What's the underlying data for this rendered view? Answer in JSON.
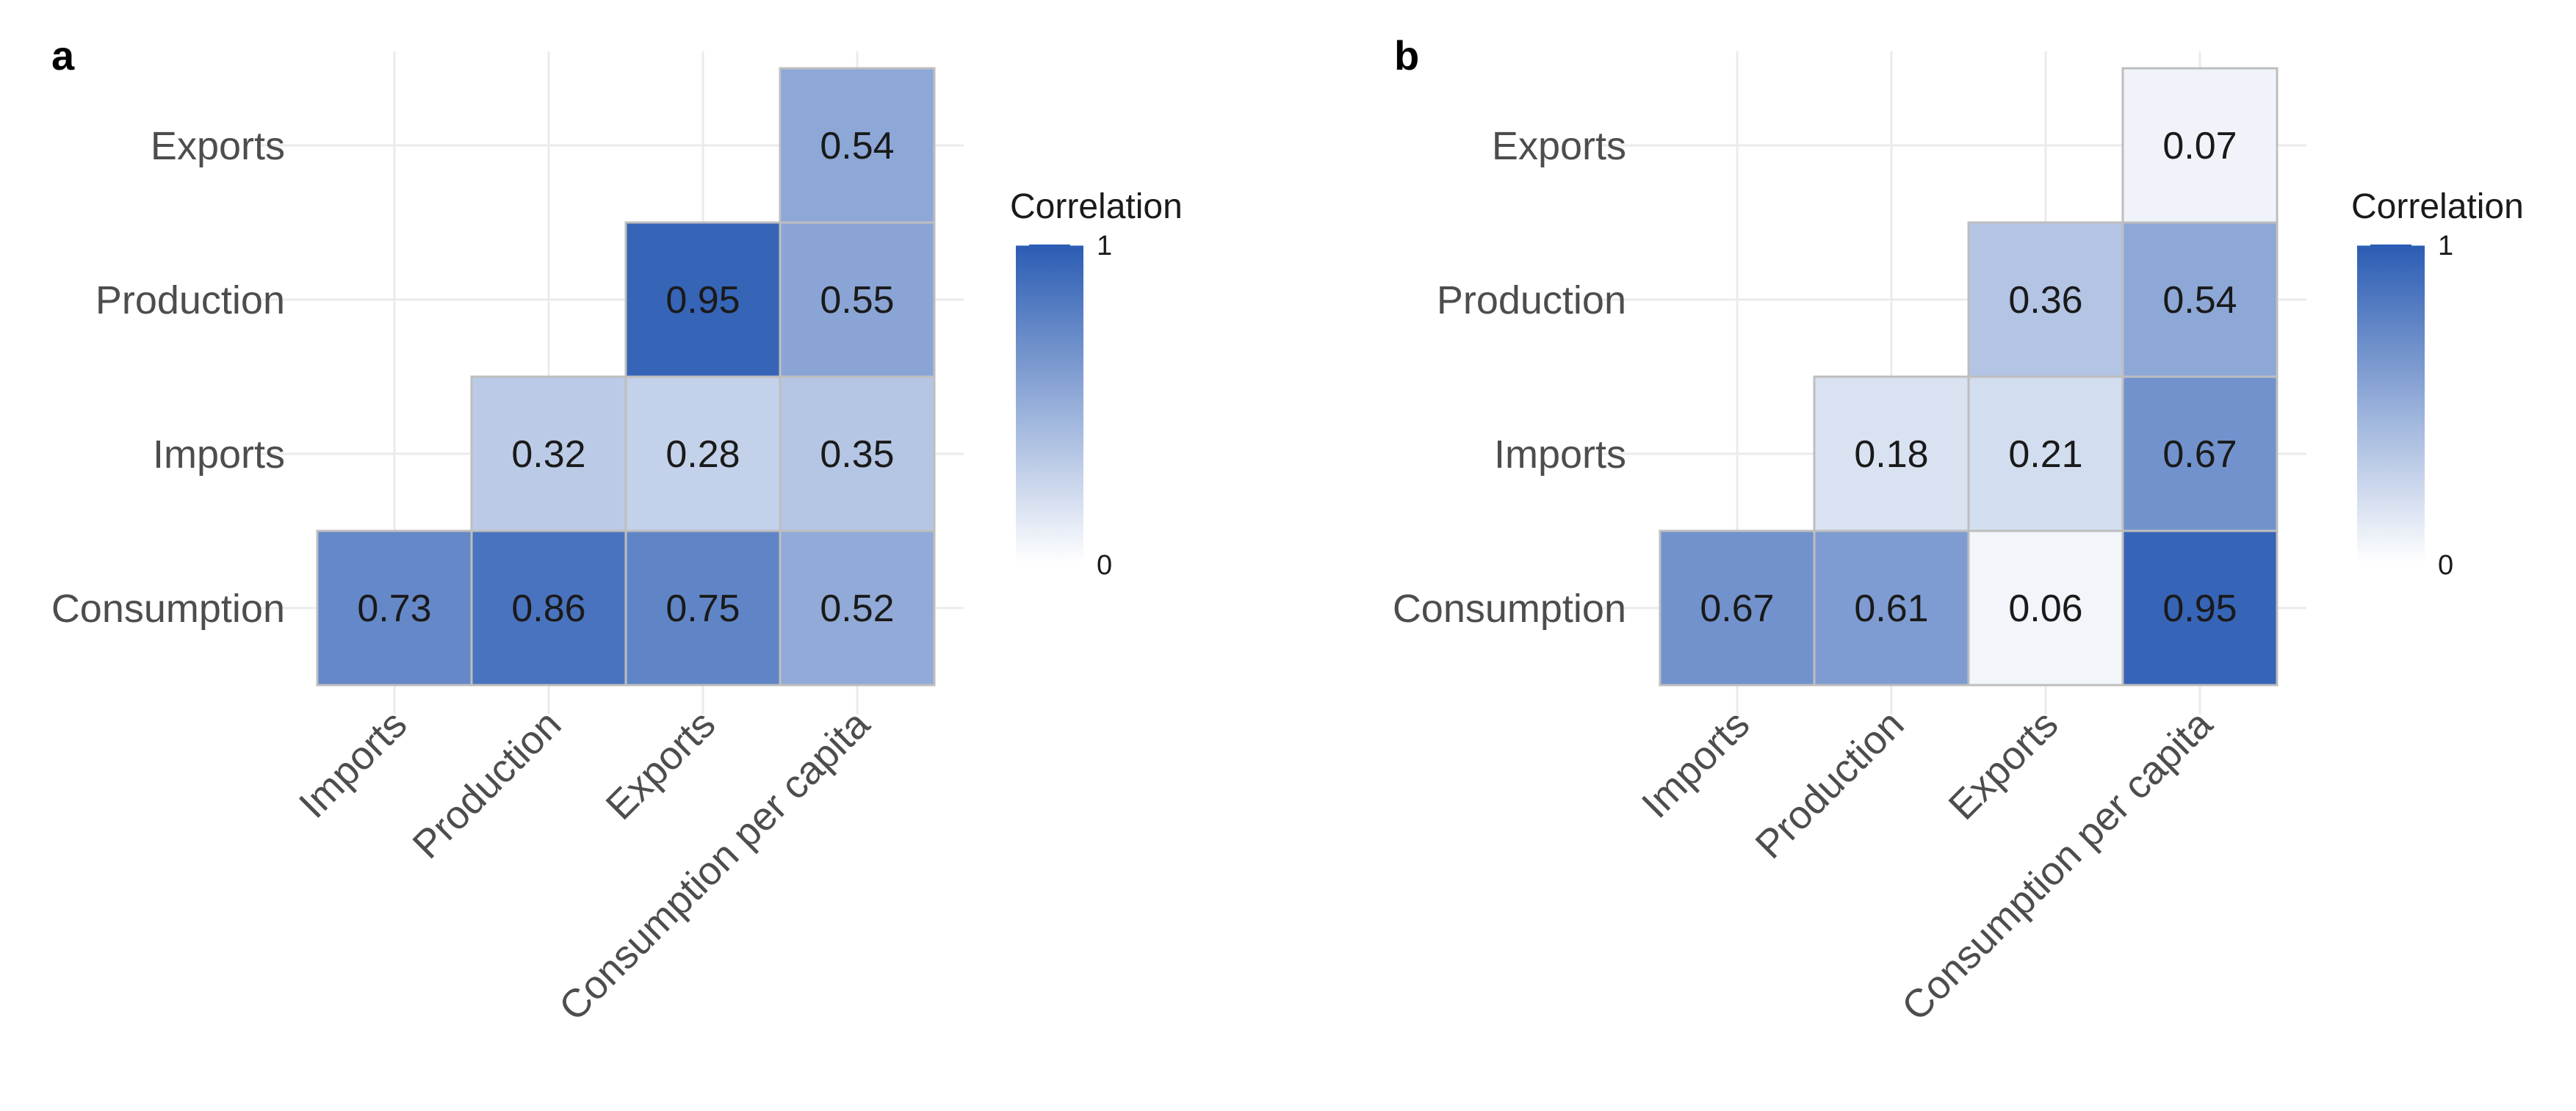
{
  "chart_data": [
    {
      "panel": "a",
      "type": "heatmap",
      "x_categories": [
        "Imports",
        "Production",
        "Exports",
        "Consumption per capita"
      ],
      "y_categories": [
        "Consumption",
        "Imports",
        "Production",
        "Exports"
      ],
      "cells": [
        {
          "x": "Imports",
          "y": "Consumption",
          "value": 0.73,
          "label": "0.73"
        },
        {
          "x": "Production",
          "y": "Consumption",
          "value": 0.86,
          "label": "0.86"
        },
        {
          "x": "Exports",
          "y": "Consumption",
          "value": 0.75,
          "label": "0.75"
        },
        {
          "x": "Consumption per capita",
          "y": "Consumption",
          "value": 0.52,
          "label": "0.52"
        },
        {
          "x": "Production",
          "y": "Imports",
          "value": 0.32,
          "label": "0.32"
        },
        {
          "x": "Exports",
          "y": "Imports",
          "value": 0.28,
          "label": "0.28"
        },
        {
          "x": "Consumption per capita",
          "y": "Imports",
          "value": 0.35,
          "label": "0.35"
        },
        {
          "x": "Exports",
          "y": "Production",
          "value": 0.95,
          "label": "0.95"
        },
        {
          "x": "Consumption per capita",
          "y": "Production",
          "value": 0.55,
          "label": "0.55"
        },
        {
          "x": "Consumption per capita",
          "y": "Exports",
          "value": 0.54,
          "label": "0.54"
        }
      ],
      "legend": {
        "title": "Correlation",
        "max_label": "1",
        "min_label": "0",
        "range": [
          0,
          1
        ]
      }
    },
    {
      "panel": "b",
      "type": "heatmap",
      "x_categories": [
        "Imports",
        "Production",
        "Exports",
        "Consumption per capita"
      ],
      "y_categories": [
        "Consumption",
        "Imports",
        "Production",
        "Exports"
      ],
      "cells": [
        {
          "x": "Imports",
          "y": "Consumption",
          "value": 0.67,
          "label": "0.67"
        },
        {
          "x": "Production",
          "y": "Consumption",
          "value": 0.61,
          "label": "0.61"
        },
        {
          "x": "Exports",
          "y": "Consumption",
          "value": 0.06,
          "label": "0.06"
        },
        {
          "x": "Consumption per capita",
          "y": "Consumption",
          "value": 0.95,
          "label": "0.95"
        },
        {
          "x": "Production",
          "y": "Imports",
          "value": 0.18,
          "label": "0.18"
        },
        {
          "x": "Exports",
          "y": "Imports",
          "value": 0.21,
          "label": "0.21"
        },
        {
          "x": "Consumption per capita",
          "y": "Imports",
          "value": 0.67,
          "label": "0.67"
        },
        {
          "x": "Exports",
          "y": "Production",
          "value": 0.36,
          "label": "0.36"
        },
        {
          "x": "Consumption per capita",
          "y": "Production",
          "value": 0.54,
          "label": "0.54"
        },
        {
          "x": "Consumption per capita",
          "y": "Exports",
          "value": 0.07,
          "label": "0.07"
        }
      ],
      "legend": {
        "title": "Correlation",
        "max_label": "1",
        "min_label": "0",
        "range": [
          0,
          1
        ]
      }
    }
  ],
  "colors": {
    "low": "#ffffff",
    "high": "#2b5cb3",
    "grid": "#ebebeb",
    "cell_border": "#bebebe",
    "tick_text": "#4d4d4d"
  }
}
